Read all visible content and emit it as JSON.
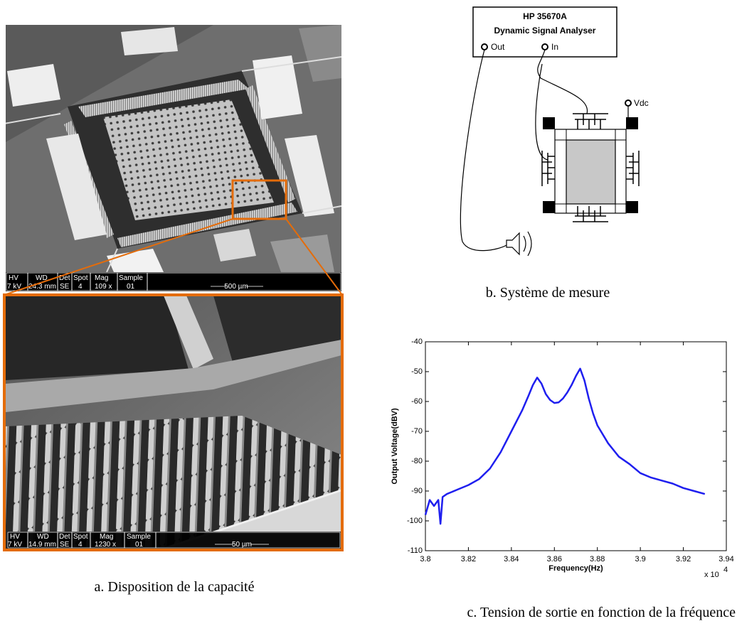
{
  "panel_a": {
    "caption": "a. Disposition de la capacité",
    "overview_bar": {
      "headers": [
        "HV",
        "WD",
        "Det",
        "Spot",
        "Mag",
        "Sample"
      ],
      "values": [
        "7 kV",
        "24.3 mm",
        "SE",
        "4",
        "109 x",
        "01"
      ],
      "scale": "500 µm"
    },
    "zoom_bar": {
      "headers": [
        "HV",
        "WD",
        "Det",
        "Spot",
        "Mag",
        "Sample"
      ],
      "values": [
        "7 kV",
        "14.9 mm",
        "SE",
        "4",
        "1230 x",
        "01"
      ],
      "scale": "50 µm"
    }
  },
  "panel_b": {
    "caption": "b. Système de mesure",
    "instrument": "HP 35670A",
    "instrument_name": "Dynamic Signal Analyser",
    "out_label": "Out",
    "in_label": "In",
    "vdc_label": "Vdc"
  },
  "panel_c": {
    "caption": "c. Tension de sortie en fonction de la fréquence"
  },
  "chart_data": {
    "type": "line",
    "x_label": "Frequency(Hz)",
    "y_label": "Output Voltage(dBV)",
    "x_multiplier": {
      "base": "x 10",
      "exponent": "4"
    },
    "x": [
      3.8,
      3.802,
      3.804,
      3.806,
      3.807,
      3.808,
      3.81,
      3.815,
      3.82,
      3.825,
      3.83,
      3.835,
      3.84,
      3.845,
      3.848,
      3.85,
      3.852,
      3.854,
      3.856,
      3.858,
      3.86,
      3.862,
      3.864,
      3.866,
      3.868,
      3.87,
      3.872,
      3.874,
      3.876,
      3.878,
      3.88,
      3.885,
      3.89,
      3.895,
      3.9,
      3.905,
      3.91,
      3.915,
      3.92,
      3.925,
      3.93
    ],
    "values": [
      -98,
      -93,
      -95,
      -93,
      -101,
      -92,
      -91,
      -89.5,
      -88,
      -86,
      -82.5,
      -77,
      -70,
      -63,
      -58,
      -54.5,
      -52,
      -54,
      -57.5,
      -59.5,
      -60.5,
      -60.3,
      -59,
      -57,
      -54.5,
      -51.5,
      -49,
      -53,
      -59,
      -64,
      -68,
      -74,
      -78.5,
      -81,
      -84,
      -85.5,
      -86.5,
      -87.5,
      -89,
      -90,
      -91
    ],
    "color": "#1f1fef",
    "xlim": [
      3.8,
      3.94
    ],
    "ylim": [
      -110,
      -40
    ],
    "xticks": [
      3.8,
      3.82,
      3.84,
      3.86,
      3.88,
      3.9,
      3.92,
      3.94
    ],
    "yticks": [
      -110,
      -100,
      -90,
      -80,
      -70,
      -60,
      -50,
      -40
    ],
    "grid": false
  }
}
